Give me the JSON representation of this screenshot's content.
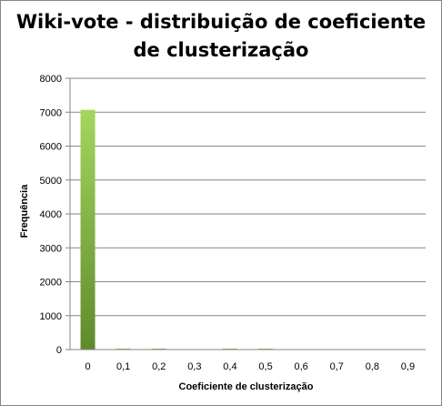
{
  "chart_data": {
    "type": "bar",
    "title_lines": [
      "Wiki-vote - distribuição de coeficiente",
      "de clusterização"
    ],
    "xlabel": "Coeficiente de clusterização",
    "ylabel": "Frequência",
    "categories": [
      "0",
      "0,1",
      "0,2",
      "0,3",
      "0,4",
      "0,5",
      "0,6",
      "0,7",
      "0,8",
      "0,9"
    ],
    "values": [
      7070,
      30,
      30,
      0,
      30,
      30,
      0,
      0,
      0,
      0
    ],
    "ylim": [
      0,
      8000
    ],
    "yticks": [
      "0",
      "1000",
      "2000",
      "3000",
      "4000",
      "5000",
      "6000",
      "7000",
      "8000"
    ],
    "grid": true,
    "legend": "none",
    "bar_color_top": "#a4d65e",
    "bar_color_bottom": "#5f8a2c"
  }
}
